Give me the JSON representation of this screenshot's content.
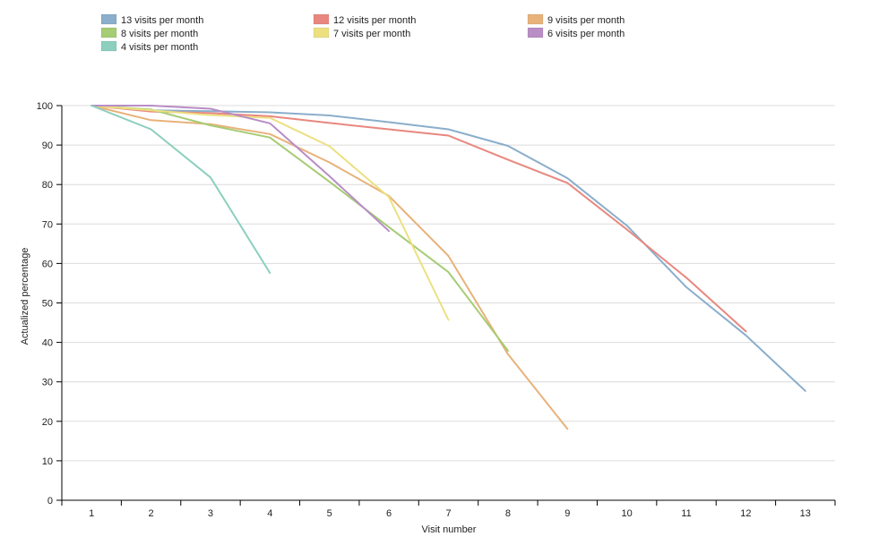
{
  "chart_data": {
    "type": "line",
    "title": "",
    "xlabel": "Visit number",
    "ylabel": "Actualized percentage",
    "x_ticks": [
      1,
      2,
      3,
      4,
      5,
      6,
      7,
      8,
      9,
      10,
      11,
      12,
      13
    ],
    "y_ticks": [
      0,
      10,
      20,
      30,
      40,
      50,
      60,
      70,
      80,
      90,
      100
    ],
    "xlim": [
      0.5,
      13.5
    ],
    "ylim": [
      0,
      100
    ],
    "grid": "horizontal",
    "legend_position": "top",
    "series": [
      {
        "name": "13 visits per month",
        "color": "#8aaecb",
        "values": [
          100,
          98.8,
          98.6,
          98.3,
          97.5,
          95.8,
          94.0,
          89.8,
          81.6,
          69.6,
          54.0,
          41.8,
          27.7
        ]
      },
      {
        "name": "12 visits per month",
        "color": "#e8877f",
        "values": [
          100,
          98.5,
          98.1,
          97.3,
          95.6,
          94.0,
          92.4,
          86.3,
          80.4,
          68.6,
          56.4,
          42.8
        ]
      },
      {
        "name": "9 visits per month",
        "color": "#e8b27a",
        "values": [
          100,
          96.3,
          95.3,
          92.8,
          85.6,
          77.1,
          61.9,
          37.0,
          18.1
        ]
      },
      {
        "name": "8 visits per month",
        "color": "#a6cc74",
        "values": [
          100,
          99.0,
          95.0,
          91.9,
          80.7,
          69.2,
          57.8,
          37.9
        ]
      },
      {
        "name": "7 visits per month",
        "color": "#ece081",
        "values": [
          100,
          98.8,
          97.6,
          96.9,
          89.7,
          76.8,
          45.7
        ]
      },
      {
        "name": "6 visits per month",
        "color": "#b98dc6",
        "values": [
          100,
          100,
          99.2,
          95.5,
          82.1,
          68.2
        ]
      },
      {
        "name": "4 visits per month",
        "color": "#8ccfbe",
        "values": [
          100,
          94.0,
          81.8,
          57.6
        ]
      }
    ]
  }
}
